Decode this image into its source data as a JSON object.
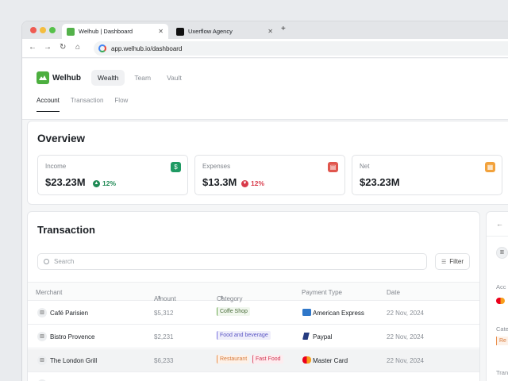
{
  "browser": {
    "tabs": [
      {
        "title": "Welhub | Dashboard",
        "active": true
      },
      {
        "title": "Uxerflow Agency",
        "active": false
      }
    ],
    "url": "app.welhub.io/dashboard"
  },
  "app": {
    "brand": "Welhub",
    "topnav": [
      "Wealth",
      "Team",
      "Vault"
    ],
    "subnav": [
      "Account",
      "Transaction",
      "Flow"
    ]
  },
  "overview": {
    "title": "Overview",
    "stats": [
      {
        "label": "Income",
        "value": "$23.23M",
        "change": "12%",
        "direction": "up",
        "icon": "dollar-icon",
        "color": "#1f9a63"
      },
      {
        "label": "Expenses",
        "value": "$13.3M",
        "change": "12%",
        "direction": "down",
        "icon": "receipt-icon",
        "color": "#e0564d"
      },
      {
        "label": "Net",
        "value": "$23.23M",
        "icon": "document-icon",
        "color": "#f2a23c"
      }
    ]
  },
  "transactions": {
    "title": "Transaction",
    "search_placeholder": "Search",
    "filter_label": "Filter",
    "columns": [
      "Merchant",
      "Amount",
      "Category",
      "Payment Type",
      "Date"
    ],
    "rows": [
      {
        "merchant": "Café Parisien",
        "amount": "$5,312",
        "categories": [
          {
            "label": "Coffe Shop",
            "color": "green"
          }
        ],
        "payment": "American Express",
        "payment_icon": "amex-icon",
        "date": "22 Nov, 2024"
      },
      {
        "merchant": "Bistro Provence",
        "amount": "$2,231",
        "categories": [
          {
            "label": "Food and beverage",
            "color": "purple"
          }
        ],
        "payment": "Paypal",
        "payment_icon": "paypal-icon",
        "date": "22 Nov, 2024"
      },
      {
        "merchant": "The London Grill",
        "amount": "$6,233",
        "categories": [
          {
            "label": "Restaurant",
            "color": "orange"
          },
          {
            "label": "Fast Food",
            "color": "pink"
          }
        ],
        "payment": "Master Card",
        "payment_icon": "mastercard-icon",
        "date": "22 Nov, 2024"
      }
    ]
  },
  "side_panel": {
    "labels": [
      "Acc",
      "Cate",
      "Tran"
    ],
    "tag": "Re"
  }
}
